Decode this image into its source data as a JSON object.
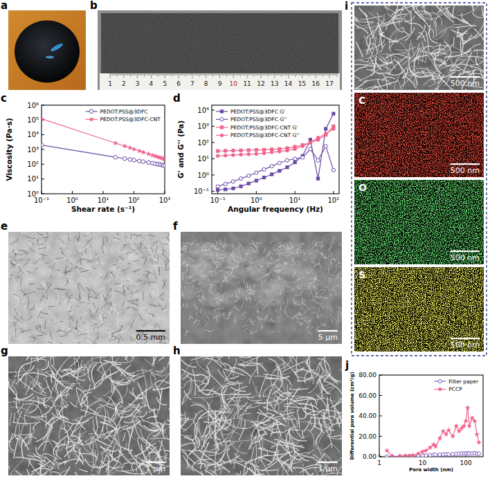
{
  "chart_data": [
    {
      "type": "line",
      "panel_label": "c",
      "x_label": "Shear rate (s⁻¹)",
      "y_label": "Viscosity (Pa·s)",
      "log": true,
      "grid": false,
      "legend": "upper right",
      "x": [
        0.1,
        25,
        50,
        75,
        100,
        150,
        200,
        300,
        400,
        500,
        600,
        700,
        800,
        900,
        1000
      ],
      "xlim": [
        0.1,
        1000
      ],
      "ylim": [
        1,
        1000000
      ],
      "xticks": [
        {
          "value": 0.1,
          "label": "10⁻¹"
        },
        {
          "value": 1,
          "label": "10⁰"
        },
        {
          "value": 10,
          "label": "10¹"
        },
        {
          "value": 100,
          "label": "10²"
        },
        {
          "value": 1000,
          "label": "10³"
        }
      ],
      "yticks": [
        {
          "value": 1,
          "label": "10⁰"
        },
        {
          "value": 10,
          "label": "10¹"
        },
        {
          "value": 100,
          "label": "10²"
        },
        {
          "value": 1000,
          "label": "10³"
        },
        {
          "value": 10000,
          "label": "10⁴"
        },
        {
          "value": 100000,
          "label": "10⁵"
        },
        {
          "value": 1000000,
          "label": "10⁶"
        }
      ],
      "series": [
        {
          "name": "PEDOT:PSS@3DFC",
          "color": "#6a4aa5",
          "marker": "hexagon",
          "line_style": "solid",
          "values": [
            2000,
            300,
            240,
            210,
            190,
            165,
            150,
            130,
            118,
            108,
            100,
            95,
            90,
            85,
            80
          ]
        },
        {
          "name": "PEDOT:PSS@3DFC-CNT",
          "color": "#f0648c",
          "marker": "star",
          "line_style": "solid",
          "values": [
            120000,
            2700,
            1700,
            1300,
            1050,
            800,
            650,
            500,
            410,
            350,
            310,
            280,
            260,
            240,
            220
          ]
        }
      ]
    },
    {
      "type": "line",
      "panel_label": "d",
      "x_label": "Angular frequency (Hz)",
      "y_label": "G' and G'' (Pa)",
      "log": true,
      "grid": false,
      "legend": "upper left",
      "x": [
        0.1,
        0.158,
        0.251,
        0.398,
        0.631,
        1,
        1.585,
        2.512,
        3.981,
        6.31,
        10,
        15.85,
        25.12,
        39.81,
        63.1,
        100
      ],
      "xlim": [
        0.07,
        140
      ],
      "ylim": [
        0.07,
        20000
      ],
      "xticks": [
        {
          "value": 0.1,
          "label": "10⁻¹"
        },
        {
          "value": 1,
          "label": "10⁰"
        },
        {
          "value": 10,
          "label": "10¹"
        },
        {
          "value": 100,
          "label": "10²"
        }
      ],
      "yticks": [
        {
          "value": 0.1,
          "label": "10⁻¹"
        },
        {
          "value": 1,
          "label": "10⁰"
        },
        {
          "value": 10,
          "label": "10¹"
        },
        {
          "value": 100,
          "label": "10²"
        },
        {
          "value": 1000,
          "label": "10³"
        },
        {
          "value": 10000,
          "label": "10⁴"
        }
      ],
      "series": [
        {
          "name": "PEDOT:PSS@3DFC G'",
          "color": "#6a4aa5",
          "marker": "square",
          "line_style": "solid",
          "values": [
            0.12,
            0.13,
            0.15,
            0.2,
            0.3,
            0.45,
            0.7,
            1.1,
            1.8,
            3,
            6,
            15,
            150,
            0.6,
            700,
            6000
          ]
        },
        {
          "name": "PEDOT:PSS@3DFC G''",
          "color": "#6a4aa5",
          "marker": "open-circle",
          "line_style": "solid",
          "values": [
            0.2,
            0.28,
            0.4,
            0.6,
            0.9,
            1.4,
            2.2,
            3.5,
            5.5,
            8,
            10,
            12,
            40,
            8,
            60,
            2
          ]
        },
        {
          "name": "PEDOT:PSS@3DFC-CNT G'",
          "color": "#f0648c",
          "marker": "square",
          "line_style": "solid",
          "values": [
            30,
            31,
            32,
            33,
            34,
            35,
            36,
            38,
            40,
            45,
            55,
            70,
            100,
            150,
            300,
            1000
          ]
        },
        {
          "name": "PEDOT:PSS@3DFC-CNT G''",
          "color": "#f0648c",
          "marker": "circle",
          "line_style": "solid",
          "values": [
            15,
            16,
            17,
            18,
            19,
            20,
            22,
            25,
            28,
            32,
            40,
            60,
            100,
            200,
            350,
            700
          ]
        }
      ]
    },
    {
      "type": "line",
      "panel_label": "j",
      "x_label": "Pore width (nm)",
      "y_label": "Differential pore volume (cm³/g)",
      "log": "x",
      "grid": false,
      "legend": "upper right",
      "x": [
        1.5,
        2,
        3,
        4,
        5,
        6,
        8,
        10,
        12,
        15,
        18,
        20,
        25,
        30,
        35,
        40,
        50,
        60,
        70,
        80,
        90,
        100,
        110,
        120,
        140,
        160,
        180,
        200
      ],
      "xlim": [
        1,
        250
      ],
      "ylim": [
        0,
        80
      ],
      "xticks": [
        1,
        10,
        100
      ],
      "yticks": [
        {
          "value": 0,
          "label": "0.00"
        },
        {
          "value": 20,
          "label": "20.00"
        },
        {
          "value": 40,
          "label": "40.00"
        },
        {
          "value": 60,
          "label": "60.00"
        },
        {
          "value": 80,
          "label": "80.00"
        }
      ],
      "series": [
        {
          "name": "Filter paper",
          "color": "#7a5bc0",
          "marker": "open-circle",
          "line_style": "solid",
          "values": [
            0.2,
            0.2,
            0.3,
            0.5,
            0.5,
            0.6,
            0.8,
            1,
            1.2,
            1.5,
            1.8,
            2,
            2,
            2.2,
            2.5,
            2.2,
            2.5,
            2.8,
            3,
            3,
            3.2,
            3,
            3.5,
            3,
            3.2,
            3.5,
            3,
            3
          ]
        },
        {
          "name": "PCCP",
          "color": "#f0648c",
          "marker": "star",
          "line_style": "solid",
          "values": [
            6,
            0.5,
            0.5,
            0.8,
            1,
            1.5,
            3,
            5,
            6,
            9,
            12,
            10,
            18,
            25,
            22,
            26,
            20,
            30,
            25,
            28,
            30,
            35,
            48,
            30,
            38,
            35,
            22,
            14
          ]
        }
      ]
    }
  ],
  "images": [
    {
      "panel_label": "a"
    },
    {
      "panel_label": "b",
      "ruler_labels": [
        {
          "text": "1"
        },
        {
          "text": "2"
        },
        {
          "text": "3"
        },
        {
          "text": "4"
        },
        {
          "text": "5"
        },
        {
          "text": "6"
        },
        {
          "text": "7"
        },
        {
          "text": "8"
        },
        {
          "text": "9"
        },
        {
          "text": "10",
          "color": "#b3232a"
        },
        {
          "text": "11"
        },
        {
          "text": "12"
        },
        {
          "text": "13"
        },
        {
          "text": "14"
        },
        {
          "text": "15"
        },
        {
          "text": "16"
        },
        {
          "text": "17"
        }
      ]
    },
    {
      "panel_label": "e",
      "scale_bar": "0.5 mm"
    },
    {
      "panel_label": "f",
      "scale_bar": "5 μm"
    },
    {
      "panel_label": "g",
      "scale_bar": "1 μm"
    },
    {
      "panel_label": "h",
      "scale_bar": "1 μm"
    },
    {
      "panel_label": "i",
      "tiles": [
        {
          "scale_bar": "500 nm"
        },
        {
          "element": "C",
          "color": "#e3120b",
          "scale_bar": "500 nm"
        },
        {
          "element": "O",
          "color": "#22c02a",
          "scale_bar": "500 nm"
        },
        {
          "element": "S",
          "color": "#e6e21a",
          "scale_bar": "500 nm"
        }
      ]
    }
  ]
}
